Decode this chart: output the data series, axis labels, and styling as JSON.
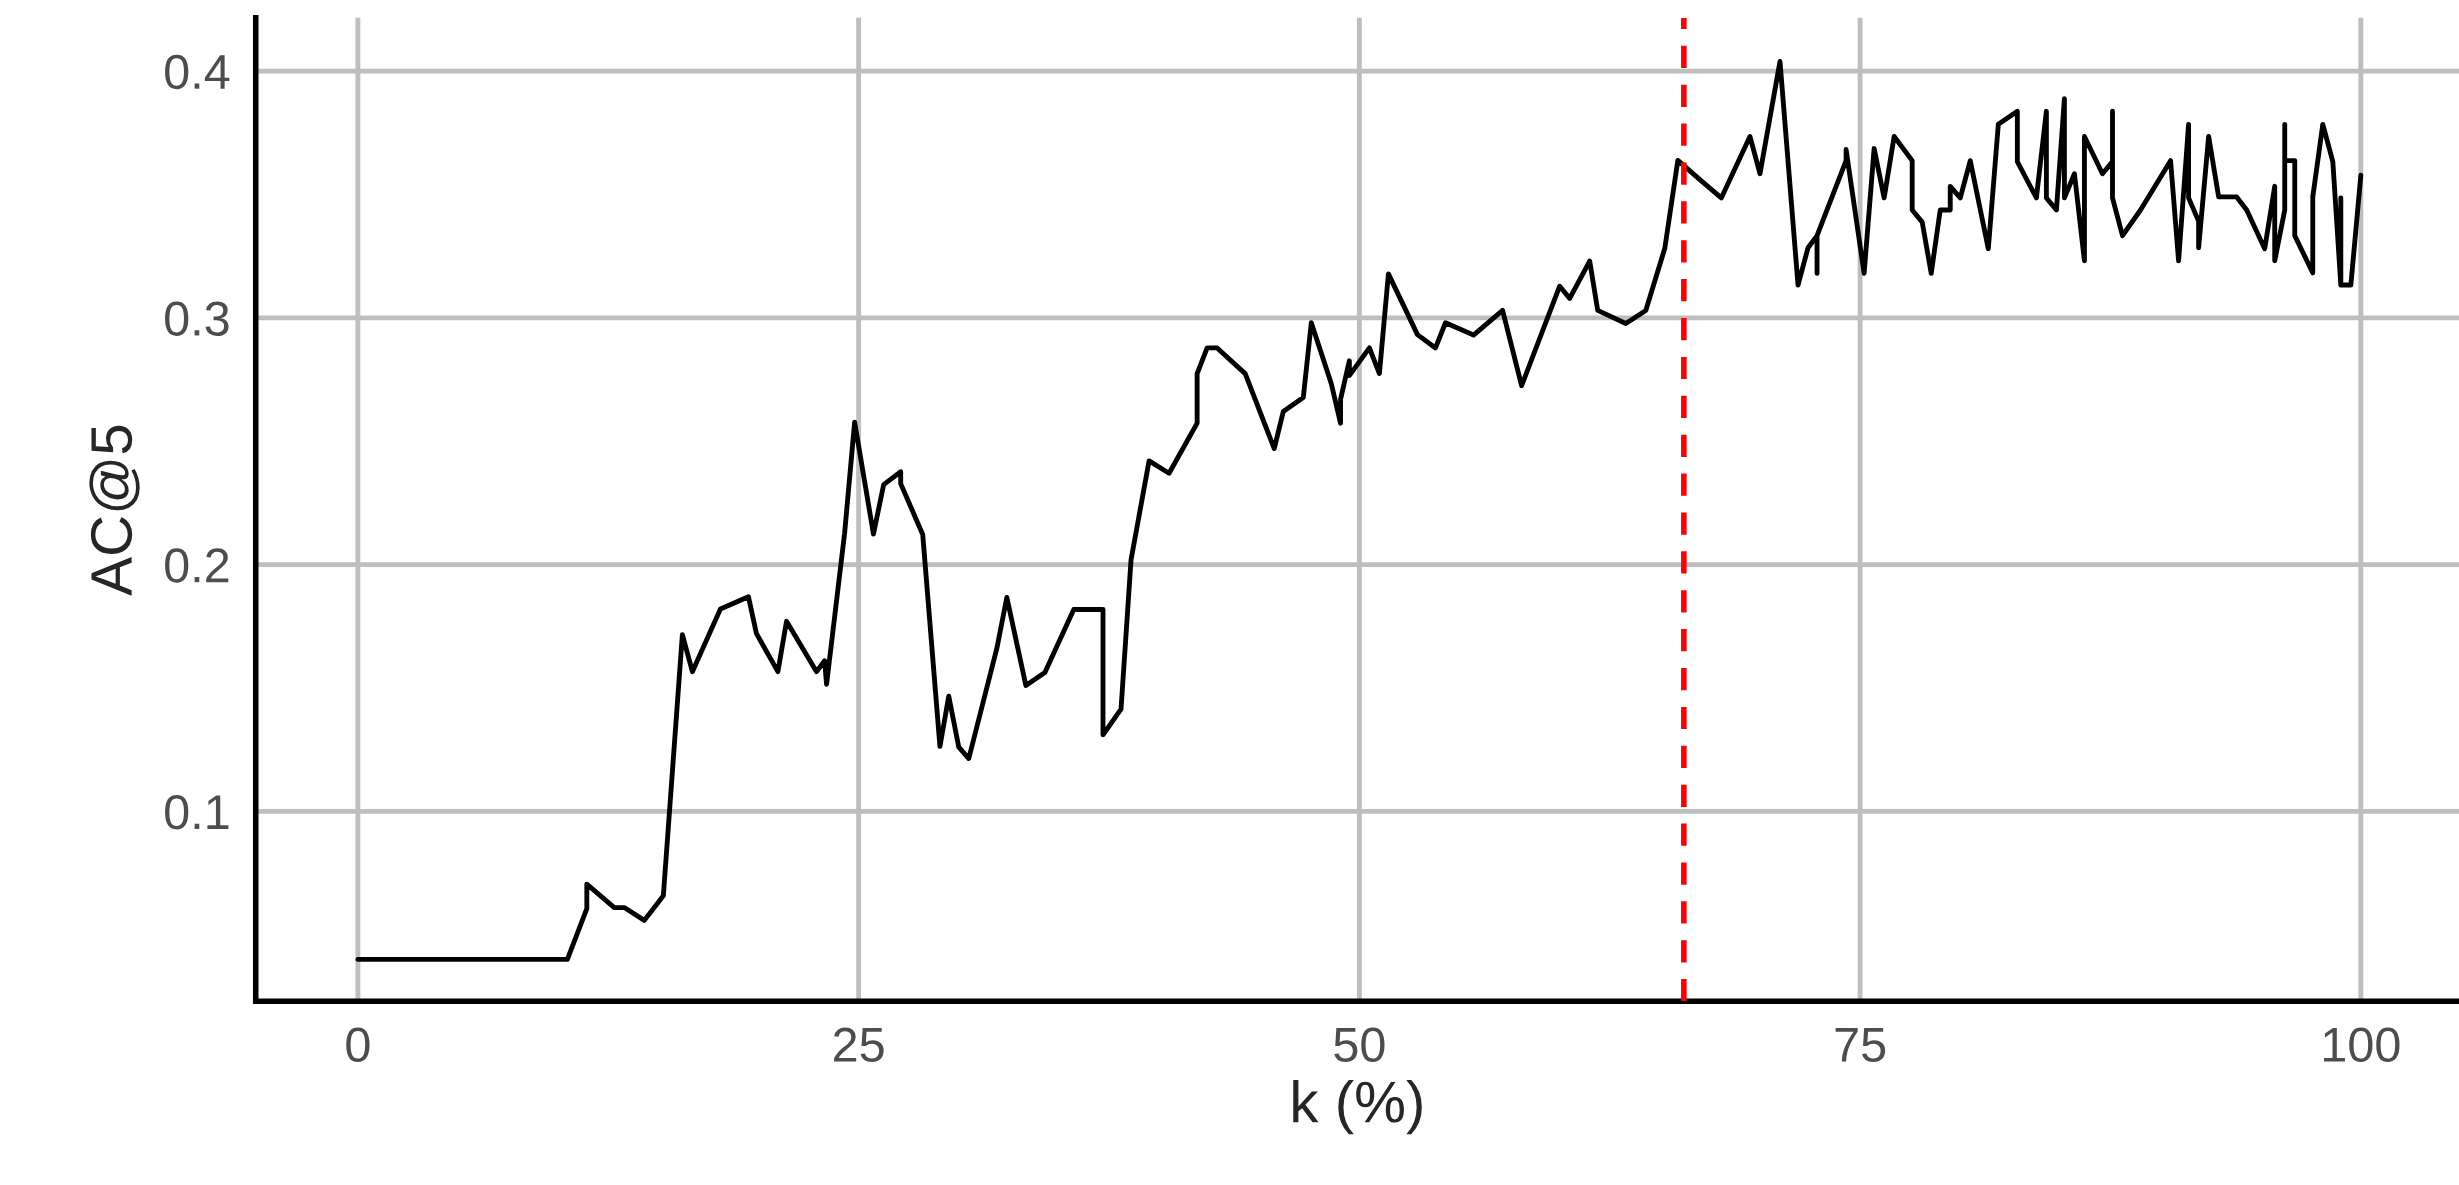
{
  "chart_data": {
    "type": "line",
    "xlabel": "k (%)",
    "ylabel": "AC@5",
    "xlim": [
      -5.1,
      104.9
    ],
    "ylim": [
      0.023,
      0.4216
    ],
    "xticks": [
      0,
      25,
      50,
      75,
      100
    ],
    "yticks": [
      0.1,
      0.2,
      0.3,
      0.4
    ],
    "grid": true,
    "line_style": "solid",
    "marker": "none",
    "ref_lines": [
      {
        "axis": "x",
        "value": 66.2,
        "color": "#ff0000",
        "line_style": "dashed"
      }
    ],
    "series": [
      {
        "color": "#000000",
        "x": [
          0,
          10.46,
          11.43,
          11.43,
          12.8,
          13.3,
          14.3,
          15.25,
          16.2,
          16.7,
          18.1,
          19.5,
          19.9,
          20.97,
          21.4,
          22.9,
          23.3,
          23.4,
          24.3,
          24.8,
          25.74,
          26.25,
          27.1,
          27.1,
          28.2,
          29.06,
          29.5,
          30.0,
          30.5,
          31.9,
          32.4,
          33.35,
          34.3,
          35.74,
          37.2,
          37.2,
          38.1,
          38.6,
          39.5,
          40.5,
          41.9,
          41.9,
          42.4,
          42.9,
          44.3,
          45.75,
          46.2,
          47.2,
          47.6,
          48.6,
          49.06,
          49.06,
          49.5,
          49.5,
          50.5,
          51.0,
          51.45,
          52.9,
          53.8,
          54.3,
          55.7,
          57.15,
          58.1,
          60.0,
          60.5,
          61.5,
          61.9,
          63.3,
          64.3,
          65.25,
          65.9,
          67.1,
          68.07,
          69.5,
          70.0,
          71.0,
          71.9,
          72.4,
          72.85,
          72.85,
          72.85,
          74.3,
          74.3,
          75.2,
          75.7,
          76.2,
          76.7,
          77.6,
          77.6,
          78.1,
          78.55,
          79.0,
          79.5,
          79.5,
          80.0,
          80.5,
          81.4,
          81.9,
          82.85,
          82.85,
          83.8,
          84.3,
          84.3,
          84.8,
          85.2,
          85.2,
          85.7,
          86.2,
          86.2,
          87.1,
          87.6,
          87.6,
          87.6,
          88.1,
          89.0,
          90.5,
          90.9,
          91.4,
          91.4,
          91.9,
          91.9,
          92.4,
          92.9,
          93.8,
          94.3,
          95.2,
          95.7,
          95.7,
          96.2,
          96.2,
          96.2,
          96.7,
          96.7,
          97.6,
          97.6,
          98.1,
          98.6,
          99.0,
          99.0,
          99.0,
          99.5,
          100
        ],
        "values": [
          0.04,
          0.04,
          0.0606,
          0.0705,
          0.061,
          0.061,
          0.0558,
          0.0658,
          0.1716,
          0.1566,
          0.182,
          0.187,
          0.172,
          0.1566,
          0.177,
          0.1566,
          0.161,
          0.1515,
          0.2127,
          0.2577,
          0.2124,
          0.2324,
          0.2376,
          0.2328,
          0.2122,
          0.1263,
          0.1467,
          0.126,
          0.1214,
          0.166,
          0.1867,
          0.151,
          0.1563,
          0.1818,
          0.1818,
          0.131,
          0.1414,
          0.2019,
          0.242,
          0.237,
          0.2573,
          0.2774,
          0.2878,
          0.2878,
          0.2774,
          0.247,
          0.262,
          0.2677,
          0.298,
          0.2733,
          0.2573,
          0.267,
          0.2826,
          0.2766,
          0.2878,
          0.2774,
          0.3178,
          0.2932,
          0.2878,
          0.298,
          0.293,
          0.303,
          0.2725,
          0.3128,
          0.3079,
          0.323,
          0.303,
          0.2977,
          0.303,
          0.3282,
          0.3638,
          0.3553,
          0.3486,
          0.3735,
          0.3584,
          0.4039,
          0.3133,
          0.3284,
          0.3333,
          0.318,
          0.3333,
          0.3637,
          0.3682,
          0.318,
          0.3686,
          0.3486,
          0.3735,
          0.3637,
          0.3437,
          0.3388,
          0.318,
          0.3437,
          0.3437,
          0.3533,
          0.3486,
          0.3637,
          0.328,
          0.3784,
          0.3837,
          0.3633,
          0.3486,
          0.3837,
          0.3486,
          0.3437,
          0.3888,
          0.3486,
          0.3584,
          0.3231,
          0.3735,
          0.3584,
          0.3633,
          0.3837,
          0.3486,
          0.3333,
          0.3437,
          0.3637,
          0.3231,
          0.3784,
          0.3486,
          0.3392,
          0.3284,
          0.3735,
          0.349,
          0.349,
          0.3437,
          0.328,
          0.3533,
          0.3231,
          0.3437,
          0.3784,
          0.3637,
          0.3637,
          0.3333,
          0.3182,
          0.349,
          0.3784,
          0.3633,
          0.3133,
          0.3486,
          0.3133,
          0.3133,
          0.3578
        ]
      }
    ]
  }
}
